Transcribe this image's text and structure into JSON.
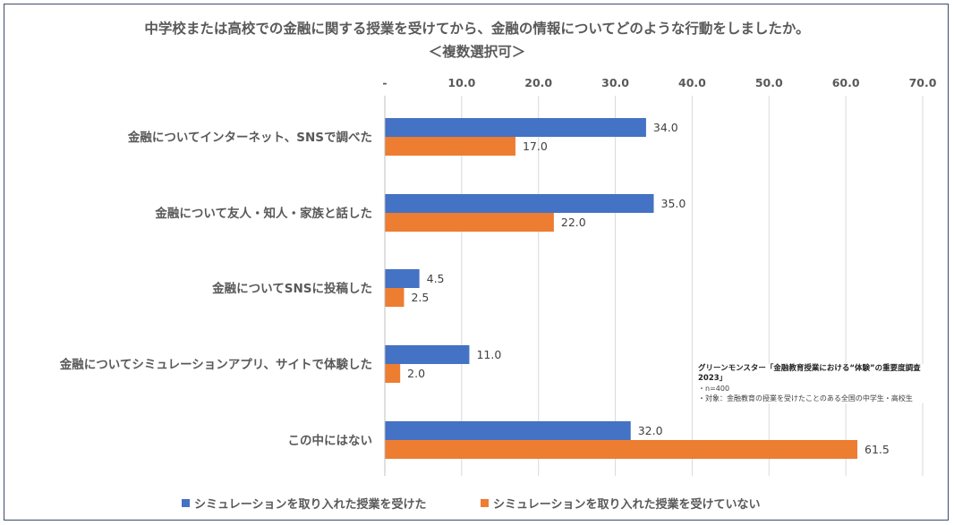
{
  "chart_data": {
    "type": "bar",
    "orientation": "horizontal",
    "title": "中学校または高校での金融に関する授業を受けてから、金融の情報についてどのような行動をしましたか。",
    "subtitle": "＜複数選択可＞",
    "categories": [
      "金融についてインターネット、SNSで調べた",
      "金融について友人・知人・家族と話した",
      "金融についてSNSに投稿した",
      "金融についてシミュレーションアプリ、サイトで体験した",
      "この中にはない"
    ],
    "series": [
      {
        "name": "シミュレーションを取り入れた授業を受けた",
        "color": "#4472c4",
        "values": [
          34.0,
          35.0,
          4.5,
          11.0,
          32.0
        ],
        "labels": [
          "34.0",
          "35.0",
          "4.5",
          "11.0",
          "32.0"
        ]
      },
      {
        "name": "シミュレーションを取り入れた授業を受けていない",
        "color": "#ed7d31",
        "values": [
          17.0,
          22.0,
          2.5,
          2.0,
          61.5
        ],
        "labels": [
          "17.0",
          "22.0",
          "2.5",
          "2.0",
          "61.5"
        ]
      }
    ],
    "xlim": [
      0,
      70
    ],
    "ticks": [
      0,
      10,
      20,
      30,
      40,
      50,
      60,
      70
    ],
    "tick_labels": [
      "-",
      "10.0",
      "20.0",
      "30.0",
      "40.0",
      "50.0",
      "60.0",
      "70.0"
    ],
    "axis_position": "top",
    "grid": true,
    "legend_position": "bottom"
  },
  "note": {
    "heading": "グリーンモンスター「金融教育授業における“体験”の重要度調査2023」",
    "line1": "・n=400",
    "line2": "・対象：金融教育の授業を受けたことのある全国の中学生・高校生"
  },
  "colors": {
    "grid": "#d9d9d9",
    "text": "#595959",
    "border": "#3b4a6b"
  }
}
